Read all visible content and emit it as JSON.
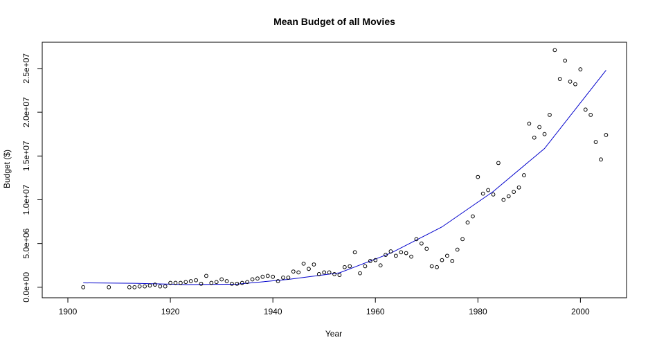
{
  "chart_data": {
    "type": "scatter",
    "title": "Mean Budget of all Movies",
    "xlabel": "Year",
    "ylabel": "Budget ($)",
    "xlim": [
      1895,
      2009
    ],
    "ylim": [
      -1200000,
      28000000
    ],
    "x_ticks": [
      1900,
      1920,
      1940,
      1960,
      1980,
      2000
    ],
    "x_tick_labels": [
      "1900",
      "1920",
      "1940",
      "1960",
      "1980",
      "2000"
    ],
    "y_ticks": [
      0,
      5000000,
      10000000,
      15000000,
      20000000,
      25000000
    ],
    "y_tick_labels": [
      "0.0e+00",
      "5.0e+06",
      "1.0e+07",
      "1.5e+07",
      "2.0e+07",
      "2.5e+07"
    ],
    "grid": false,
    "series": [
      {
        "kind": "points",
        "marker": "open-circle",
        "color": "#000000",
        "x": [
          1903,
          1908,
          1912,
          1913,
          1914,
          1915,
          1916,
          1917,
          1918,
          1919,
          1920,
          1921,
          1922,
          1923,
          1924,
          1925,
          1926,
          1927,
          1928,
          1929,
          1930,
          1931,
          1932,
          1933,
          1934,
          1935,
          1936,
          1937,
          1938,
          1939,
          1940,
          1941,
          1942,
          1943,
          1944,
          1945,
          1946,
          1947,
          1948,
          1949,
          1950,
          1951,
          1952,
          1953,
          1954,
          1955,
          1956,
          1957,
          1958,
          1959,
          1960,
          1961,
          1962,
          1963,
          1964,
          1965,
          1966,
          1967,
          1968,
          1969,
          1970,
          1971,
          1972,
          1973,
          1974,
          1975,
          1976,
          1977,
          1978,
          1979,
          1980,
          1981,
          1982,
          1983,
          1984,
          1985,
          1986,
          1987,
          1988,
          1989,
          1990,
          1991,
          1992,
          1993,
          1994,
          1995,
          1996,
          1997,
          1998,
          1999,
          2000,
          2001,
          2002,
          2003,
          2004,
          2005
        ],
        "y": [
          0,
          0,
          0,
          0,
          100000,
          100000,
          200000,
          300000,
          100000,
          100000,
          500000,
          500000,
          500000,
          600000,
          700000,
          800000,
          400000,
          1300000,
          500000,
          600000,
          900000,
          700000,
          400000,
          400000,
          500000,
          600000,
          900000,
          1000000,
          1200000,
          1300000,
          1200000,
          700000,
          1100000,
          1100000,
          1800000,
          1700000,
          2700000,
          2100000,
          2600000,
          1500000,
          1700000,
          1700000,
          1500000,
          1400000,
          2300000,
          2400000,
          4000000,
          1600000,
          2400000,
          3000000,
          3100000,
          2500000,
          3700000,
          4100000,
          3600000,
          4000000,
          3900000,
          3500000,
          5500000,
          5000000,
          4400000,
          2400000,
          2300000,
          3100000,
          3600000,
          3000000,
          4300000,
          5500000,
          7400000,
          8100000,
          12600000,
          10700000,
          11100000,
          10600000,
          14200000,
          10000000,
          10400000,
          10900000,
          11400000,
          12800000,
          18700000,
          17100000,
          18300000,
          17500000,
          19700000,
          27100000,
          23800000,
          25900000,
          23500000,
          23200000,
          24900000,
          20300000,
          19700000,
          16600000,
          14600000,
          17400000
        ]
      },
      {
        "kind": "trend-line",
        "color": "#0000cc",
        "x": [
          1903,
          1913,
          1923,
          1933,
          1943,
          1953,
          1963,
          1973,
          1983,
          1993,
          2005
        ],
        "y": [
          500000,
          450000,
          300000,
          350000,
          900000,
          1650000,
          3900000,
          6900000,
          10950000,
          15850000,
          24800000
        ]
      }
    ]
  }
}
